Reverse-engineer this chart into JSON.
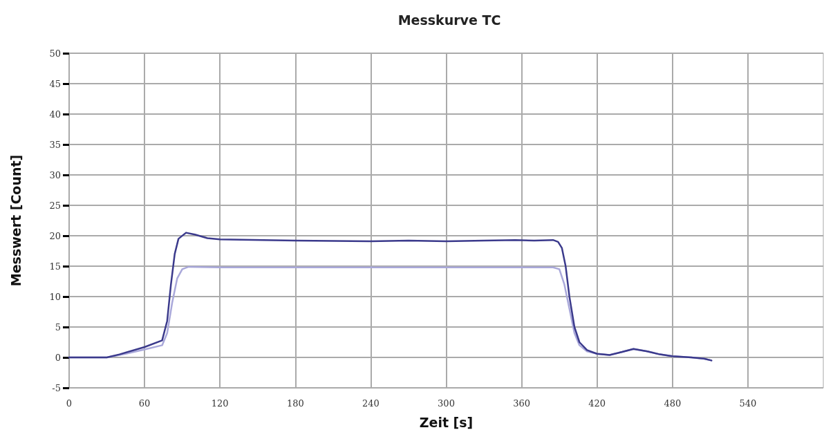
{
  "chart_data": {
    "type": "line",
    "title": "Messkurve TC",
    "xlabel": "Zeit [s]",
    "ylabel": "Messwert [Count]",
    "xlim": [
      0,
      600
    ],
    "xticks": [
      0,
      60,
      120,
      180,
      240,
      300,
      360,
      420,
      480,
      540
    ],
    "ylim": [
      -5,
      50
    ],
    "yticks": [
      -5,
      0,
      5,
      10,
      15,
      20,
      25,
      30,
      35,
      40,
      45,
      50
    ],
    "grid": true,
    "marker": "none",
    "line_style": "solid",
    "series": [
      {
        "color": "#a9a8da",
        "x": [
          0,
          30,
          45,
          60,
          74,
          78,
          82,
          86,
          90,
          95,
          120,
          180,
          240,
          300,
          360,
          385,
          390,
          394,
          398,
          402,
          406,
          412,
          420,
          430,
          440,
          449,
          460,
          470,
          480,
          495,
          505,
          511
        ],
        "values": [
          0,
          0,
          0.6,
          1.3,
          2.0,
          4,
          9,
          13,
          14.5,
          14.9,
          14.8,
          14.8,
          14.8,
          14.8,
          14.8,
          14.8,
          14.5,
          12,
          8,
          4,
          2,
          1,
          0.6,
          0.4,
          0.9,
          1.4,
          1.0,
          0.5,
          0.2,
          0,
          -0.2,
          -0.5
        ]
      },
      {
        "color": "#3b3a8c",
        "x": [
          0,
          30,
          40,
          60,
          74,
          78,
          81,
          84,
          87,
          93,
          100,
          110,
          120,
          180,
          240,
          270,
          300,
          330,
          355,
          370,
          385,
          389,
          392,
          395,
          398,
          402,
          406,
          412,
          420,
          430,
          440,
          449,
          460,
          470,
          480,
          495,
          505,
          511
        ],
        "values": [
          0,
          0,
          0.5,
          1.7,
          2.8,
          6,
          12,
          17,
          19.5,
          20.5,
          20.2,
          19.6,
          19.4,
          19.2,
          19.1,
          19.2,
          19.1,
          19.2,
          19.3,
          19.2,
          19.3,
          19.0,
          18,
          15,
          10,
          5,
          2.5,
          1.2,
          0.6,
          0.4,
          0.9,
          1.4,
          1.0,
          0.5,
          0.2,
          0,
          -0.2,
          -0.5
        ]
      }
    ]
  }
}
